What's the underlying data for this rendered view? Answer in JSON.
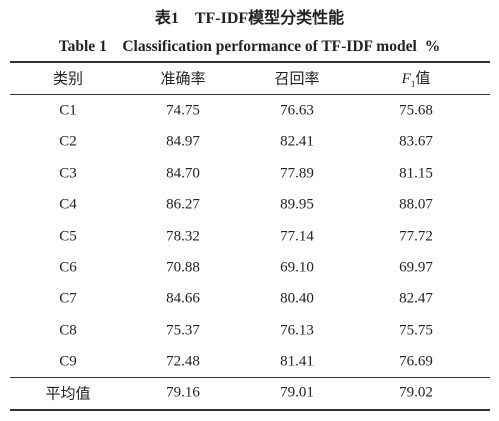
{
  "title_cn": "表1　TF-IDF模型分类性能",
  "title_en": {
    "text": "Table 1　Classification performance of TF-IDF model",
    "unit": "%"
  },
  "table": {
    "header": [
      "类别",
      "准确率",
      "召回率",
      {
        "symbol": "F",
        "sub": "1",
        "text": "值"
      }
    ],
    "rows": [
      [
        "C1",
        "74.75",
        "76.63",
        "75.68"
      ],
      [
        "C2",
        "84.97",
        "82.41",
        "83.67"
      ],
      [
        "C3",
        "84.70",
        "77.89",
        "81.15"
      ],
      [
        "C4",
        "86.27",
        "89.95",
        "88.07"
      ],
      [
        "C5",
        "78.32",
        "77.14",
        "77.72"
      ],
      [
        "C6",
        "70.88",
        "69.10",
        "69.97"
      ],
      [
        "C7",
        "84.66",
        "80.40",
        "82.47"
      ],
      [
        "C8",
        "75.37",
        "76.13",
        "75.75"
      ],
      [
        "C9",
        "72.48",
        "81.41",
        "76.69"
      ]
    ],
    "footer": [
      "平均值",
      "79.16",
      "79.01",
      "79.02"
    ]
  }
}
